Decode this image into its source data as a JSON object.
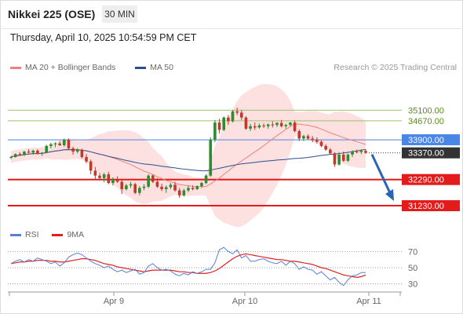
{
  "header": {
    "title": "Nikkei 225 (OSE)",
    "timeframe": "30 MIN",
    "datetime": "Thursday, April 10, 2025 10:54:59 PM CET"
  },
  "legend": {
    "ma20_label": "MA 20 + Bollinger Bands",
    "ma20_color": "#f08080",
    "ma50_label": "MA 50",
    "ma50_color": "#2a4f8f",
    "credit": "Research © 2025 Trading Central"
  },
  "rsi_legend": {
    "rsi_label": "RSI",
    "rsi_color": "#5b7fd6",
    "ma9_label": "9MA",
    "ma9_color": "#e02020"
  },
  "colors": {
    "up": "#2e8b2e",
    "down": "#c0392b",
    "band_fill": "#fde0e0",
    "resistance": "#9dc36b",
    "pivot": "#4a86e8",
    "support": "#e31b1b",
    "current_bg": "#333333",
    "arrow": "#2a64b4"
  },
  "chart_data": [
    {
      "type": "candlestick",
      "x_ticks": [
        "Apr 9",
        "Apr 10",
        "Apr 11"
      ],
      "ylim": [
        30500,
        36700
      ],
      "levels": [
        {
          "label": "35100.00",
          "value": 35100,
          "kind": "resistance"
        },
        {
          "label": "34670.00",
          "value": 34670,
          "kind": "resistance"
        },
        {
          "label": "33900.00",
          "value": 33900,
          "kind": "pivot"
        },
        {
          "label": "33370.00",
          "value": 33370,
          "kind": "current"
        },
        {
          "label": "32290.00",
          "value": 32290,
          "kind": "support"
        },
        {
          "label": "31230.00",
          "value": 31230,
          "kind": "support"
        }
      ],
      "candles": [
        [
          33180,
          33250,
          33120,
          33200
        ],
        [
          33200,
          33350,
          33180,
          33320
        ],
        [
          33320,
          33400,
          33250,
          33280
        ],
        [
          33280,
          33450,
          33240,
          33420
        ],
        [
          33420,
          33520,
          33350,
          33380
        ],
        [
          33380,
          33500,
          33300,
          33460
        ],
        [
          33460,
          33520,
          33300,
          33330
        ],
        [
          33330,
          33400,
          33250,
          33380
        ],
        [
          33380,
          33700,
          33350,
          33650
        ],
        [
          33650,
          33780,
          33550,
          33720
        ],
        [
          33720,
          33800,
          33600,
          33750
        ],
        [
          33750,
          33850,
          33650,
          33680
        ],
        [
          33680,
          33950,
          33620,
          33900
        ],
        [
          33900,
          33960,
          33500,
          33550
        ],
        [
          33550,
          33620,
          33300,
          33420
        ],
        [
          33420,
          33560,
          33350,
          33500
        ],
        [
          33500,
          33540,
          33150,
          33200
        ],
        [
          33200,
          33320,
          32950,
          33020
        ],
        [
          33020,
          33100,
          32500,
          32650
        ],
        [
          32650,
          32800,
          32300,
          32450
        ],
        [
          32450,
          32560,
          32250,
          32350
        ],
        [
          32350,
          32560,
          32180,
          32500
        ],
        [
          32500,
          32600,
          32100,
          32150
        ],
        [
          32150,
          32380,
          32050,
          32300
        ],
        [
          32300,
          32420,
          32150,
          32200
        ],
        [
          32200,
          32280,
          31700,
          31900
        ],
        [
          31900,
          32120,
          31850,
          32050
        ],
        [
          32050,
          32200,
          31950,
          32100
        ],
        [
          32100,
          32160,
          31700,
          31750
        ],
        [
          31750,
          32020,
          31650,
          31950
        ],
        [
          31950,
          32100,
          31850,
          32000
        ],
        [
          32000,
          32500,
          31950,
          32450
        ],
        [
          32450,
          32500,
          32150,
          32200
        ],
        [
          32200,
          32350,
          31950,
          32000
        ],
        [
          32000,
          32120,
          31820,
          31900
        ],
        [
          31900,
          32050,
          31750,
          31980
        ],
        [
          31980,
          32150,
          31900,
          32080
        ],
        [
          32080,
          32200,
          31800,
          31850
        ],
        [
          31850,
          31950,
          31550,
          31650
        ],
        [
          31650,
          31920,
          31600,
          31850
        ],
        [
          31850,
          32050,
          31780,
          31950
        ],
        [
          31950,
          32060,
          31850,
          31900
        ],
        [
          31900,
          32050,
          31870,
          32020
        ],
        [
          32020,
          32200,
          31950,
          32150
        ],
        [
          32150,
          32500,
          32100,
          32450
        ],
        [
          32450,
          34000,
          32400,
          33900
        ],
        [
          33900,
          34700,
          33800,
          34600
        ],
        [
          34600,
          34750,
          34150,
          34300
        ],
        [
          34300,
          34850,
          34250,
          34800
        ],
        [
          34800,
          34900,
          34500,
          34650
        ],
        [
          34650,
          35100,
          34600,
          35050
        ],
        [
          35050,
          35200,
          34900,
          35000
        ],
        [
          35000,
          35100,
          34700,
          34800
        ],
        [
          34800,
          34850,
          34300,
          34350
        ],
        [
          34350,
          34550,
          34250,
          34450
        ],
        [
          34450,
          34600,
          34300,
          34400
        ],
        [
          34400,
          34560,
          34350,
          34480
        ],
        [
          34480,
          34560,
          34380,
          34450
        ],
        [
          34450,
          34560,
          34350,
          34520
        ],
        [
          34520,
          34650,
          34400,
          34500
        ],
        [
          34500,
          34620,
          34420,
          34580
        ],
        [
          34580,
          34700,
          34400,
          34450
        ],
        [
          34450,
          34550,
          34350,
          34500
        ],
        [
          34500,
          34620,
          34450,
          34600
        ],
        [
          34600,
          34680,
          34200,
          34250
        ],
        [
          34250,
          34320,
          33850,
          33950
        ],
        [
          33950,
          34100,
          33850,
          34050
        ],
        [
          34050,
          34120,
          33900,
          33950
        ],
        [
          33950,
          34050,
          33800,
          33900
        ],
        [
          33900,
          34000,
          33750,
          33820
        ],
        [
          33820,
          33880,
          33600,
          33650
        ],
        [
          33650,
          33720,
          33450,
          33500
        ],
        [
          33500,
          33560,
          33300,
          33350
        ],
        [
          33350,
          33400,
          32800,
          32900
        ],
        [
          32900,
          33400,
          32850,
          33300
        ],
        [
          33300,
          33420,
          33000,
          33050
        ],
        [
          33050,
          33350,
          33000,
          33300
        ],
        [
          33300,
          33480,
          33200,
          33420
        ],
        [
          33420,
          33500,
          33350,
          33400
        ],
        [
          33400,
          33520,
          33320,
          33450
        ],
        [
          33450,
          33520,
          33330,
          33370
        ]
      ]
    },
    {
      "type": "line",
      "title": "RSI",
      "ylim": [
        20,
        80
      ],
      "y_ticks": [
        70,
        50,
        30
      ],
      "series": [
        {
          "name": "RSI",
          "values": [
            55,
            58,
            60,
            57,
            60,
            58,
            62,
            60,
            58,
            55,
            57,
            52,
            56,
            63,
            66,
            68,
            66,
            62,
            58,
            55,
            53,
            50,
            52,
            48,
            45,
            47,
            44,
            46,
            48,
            42,
            44,
            52,
            55,
            50,
            47,
            48,
            46,
            42,
            40,
            43,
            41,
            45,
            43,
            45,
            48,
            48,
            56,
            72,
            75,
            70,
            67,
            72,
            62,
            65,
            58,
            58,
            60,
            61,
            58,
            56,
            55,
            58,
            53,
            58,
            55,
            48,
            51,
            48,
            47,
            42,
            45,
            40,
            35,
            38,
            32,
            28,
            35,
            40,
            41,
            44,
            44
          ]
        },
        {
          "name": "9MA",
          "values": [
            55,
            56,
            57,
            57,
            58,
            58,
            59,
            59,
            59,
            58,
            58,
            57,
            57,
            58,
            59,
            60,
            61,
            61,
            60,
            59,
            57,
            55,
            54,
            53,
            51,
            50,
            49,
            48,
            47,
            46,
            45,
            46,
            47,
            47,
            47,
            47,
            47,
            46,
            45,
            45,
            44,
            44,
            43,
            43,
            43,
            44,
            46,
            49,
            53,
            57,
            61,
            64,
            66,
            67,
            66,
            65,
            64,
            63,
            62,
            61,
            60,
            60,
            59,
            58,
            58,
            57,
            56,
            55,
            54,
            52,
            50,
            49,
            47,
            45,
            43,
            41,
            40,
            39,
            38,
            39,
            41
          ]
        }
      ]
    }
  ]
}
